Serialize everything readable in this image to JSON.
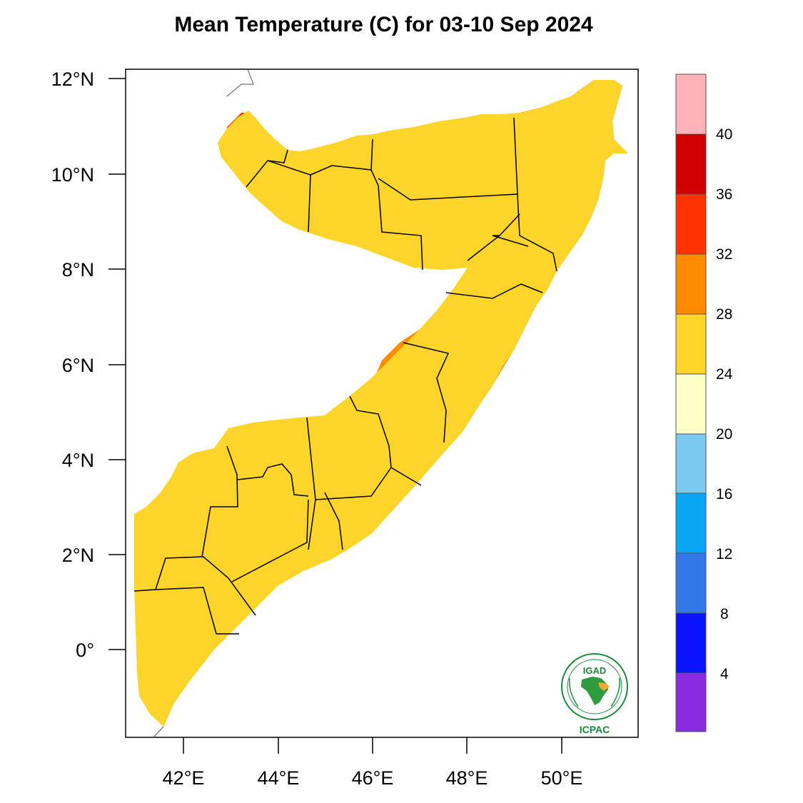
{
  "title": "Mean Temperature (C) for 03-10 Sep 2024",
  "axes": {
    "lat_labels": [
      "12°N",
      "10°N",
      "8°N",
      "6°N",
      "4°N",
      "2°N",
      "0°"
    ],
    "lon_labels": [
      "42°E",
      "44°E",
      "46°E",
      "48°E",
      "50°E"
    ]
  },
  "colorbar": {
    "labels": [
      "40",
      "36",
      "32",
      "28",
      "24",
      "20",
      "16",
      "12",
      "8",
      "4"
    ],
    "colors": [
      "#ffb3b8",
      "#d10000",
      "#ff3300",
      "#ff8c00",
      "#fdd52a",
      "#ffffc8",
      "#7bc8f0",
      "#0aa5f5",
      "#3377e8",
      "#0a14fa",
      "#8a2be2"
    ]
  },
  "palette": {
    "t24_28": "#fdd52a",
    "t28_32": "#ff8c00",
    "t32_36": "#ff3300",
    "t20_24": "#ffffc8",
    "t16_20": "#7bc8f0"
  },
  "logo": {
    "top_text": "IGAD",
    "bottom_text": "ICPAC",
    "color": "#1a8a3a"
  }
}
